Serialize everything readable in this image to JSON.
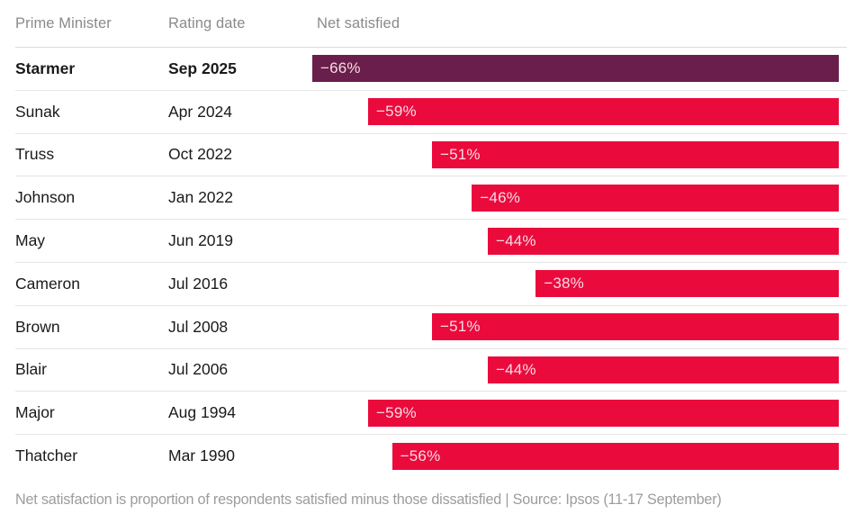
{
  "table": {
    "columns": [
      "Prime Minister",
      "Rating date",
      "Net satisfied"
    ]
  },
  "colors": {
    "bar": "#EB0A3C",
    "bar_highlight": "#6A1E4B",
    "bar_label": "#F7DCE4",
    "header_text": "#8A8A8A",
    "row_text": "#1A1A1A",
    "footnote_text": "#9C9C9C"
  },
  "footnote": "Net satisfaction is proportion of respondents satisfied minus those dissatisfied | Source: Ipsos (11-17 September)",
  "chart_data": {
    "type": "bar",
    "orientation": "horizontal",
    "bar_alignment": "right",
    "title": "",
    "xlabel": "Net satisfied",
    "xlim": [
      -66,
      0
    ],
    "grid": false,
    "legend": false,
    "highlighted_category": "Starmer",
    "categories": [
      "Starmer",
      "Sunak",
      "Truss",
      "Johnson",
      "May",
      "Cameron",
      "Brown",
      "Blair",
      "Major",
      "Thatcher"
    ],
    "rating_dates": [
      "Sep 2025",
      "Apr 2024",
      "Oct 2022",
      "Jan 2022",
      "Jun 2019",
      "Jul 2016",
      "Jul 2008",
      "Jul 2006",
      "Aug 1994",
      "Mar 1990"
    ],
    "values": [
      -66,
      -59,
      -51,
      -46,
      -44,
      -38,
      -51,
      -44,
      -59,
      -56
    ],
    "data_labels": [
      "−66%",
      "−59%",
      "−51%",
      "−46%",
      "−44%",
      "−38%",
      "−51%",
      "−44%",
      "−59%",
      "−56%"
    ]
  }
}
